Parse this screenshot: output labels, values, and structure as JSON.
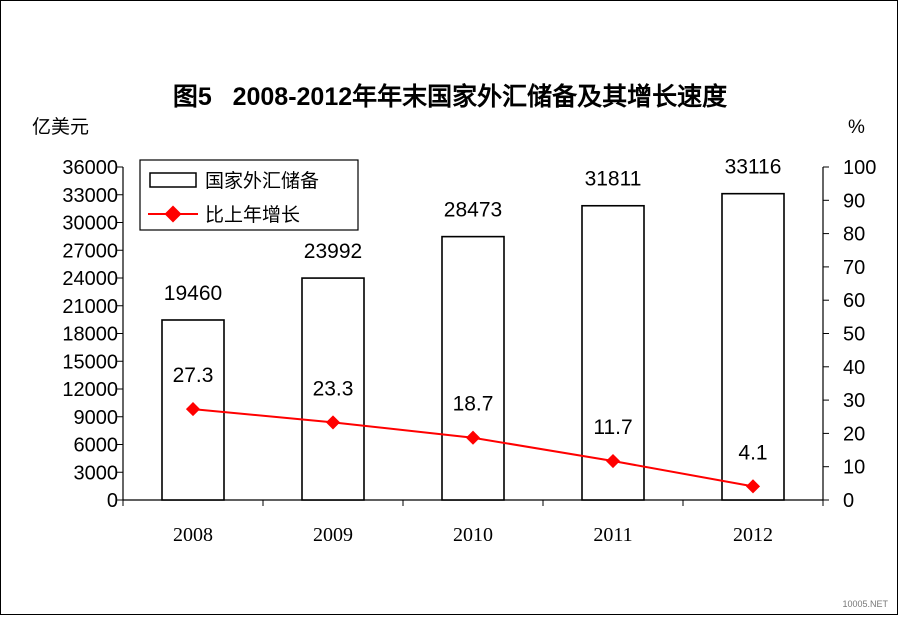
{
  "chart_data": {
    "type": "bar+line",
    "title": "图5   2008-2012年年末国家外汇储备及其增长速度",
    "left_unit": "亿美元",
    "right_unit": "%",
    "categories": [
      "2008",
      "2009",
      "2010",
      "2011",
      "2012"
    ],
    "left_axis": {
      "min": 0,
      "max": 36000,
      "step": 3000,
      "ticks": [
        "0",
        "3000",
        "6000",
        "9000",
        "12000",
        "15000",
        "18000",
        "21000",
        "24000",
        "27000",
        "30000",
        "33000",
        "36000"
      ]
    },
    "right_axis": {
      "min": 0,
      "max": 100,
      "step": 10,
      "ticks": [
        "0",
        "10",
        "20",
        "30",
        "40",
        "50",
        "60",
        "70",
        "80",
        "90",
        "100"
      ]
    },
    "series": [
      {
        "name": "国家外汇储备",
        "type": "bar",
        "axis": "left",
        "values": [
          19460,
          23992,
          28473,
          31811,
          33116
        ],
        "labels": [
          "19460",
          "23992",
          "28473",
          "31811",
          "33116"
        ],
        "color": "#ffffff",
        "stroke": "#000000"
      },
      {
        "name": "比上年增长",
        "type": "line",
        "axis": "right",
        "values": [
          27.3,
          23.3,
          18.7,
          11.7,
          4.1
        ],
        "labels": [
          "27.3",
          "23.3",
          "18.7",
          "11.7",
          "4.1"
        ],
        "color": "#ff0000"
      }
    ],
    "legend_position": "top-left"
  },
  "watermark": "10005.NET"
}
